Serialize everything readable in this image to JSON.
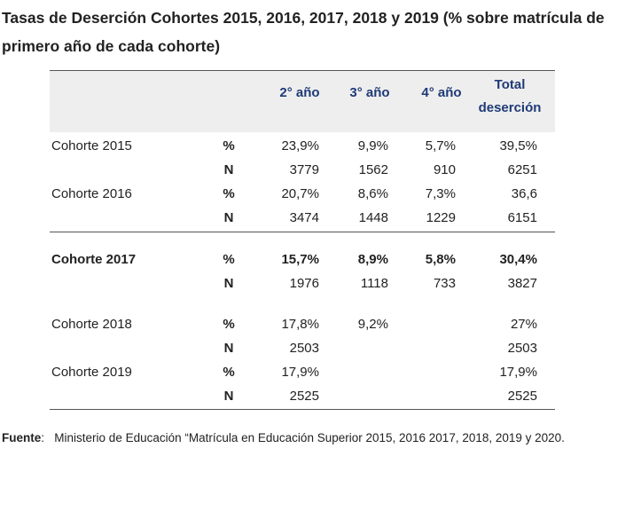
{
  "title": {
    "main": "Tasas de Deserción Cohortes 2015, 2016, 2017, 2018 y 2019",
    "suffix": " (% sobre matrícula de primero año de cada cohorte)"
  },
  "table": {
    "headers": {
      "y2": "2° año",
      "y3": "3° año",
      "y4": "4° año",
      "total_line1": "Total",
      "total_line2": "deserción"
    },
    "rows": [
      {
        "label": "Cohorte 2015",
        "type": "%",
        "y2": "23,9%",
        "y3": "9,9%",
        "y4": "5,7%",
        "total": "39,5%"
      },
      {
        "label": "",
        "type": "N",
        "y2": "3779",
        "y3": "1562",
        "y4": "910",
        "total": "6251"
      },
      {
        "label": "Cohorte 2016",
        "type": "%",
        "y2": "20,7%",
        "y3": "8,6%",
        "y4": "7,3%",
        "total": "36,6"
      },
      {
        "label": "",
        "type": "N",
        "y2": "3474",
        "y3": "1448",
        "y4": "1229",
        "total": "6151"
      },
      {
        "label": "Cohorte 2017",
        "type": "%",
        "y2": "15,7%",
        "y3": "8,9%",
        "y4": "5,8%",
        "total": "30,4%"
      },
      {
        "label": "",
        "type": "N",
        "y2": "1976",
        "y3": "1118",
        "y4": "733",
        "total": "3827"
      },
      {
        "label": "Cohorte 2018",
        "type": "%",
        "y2": "17,8%",
        "y3": "9,2%",
        "y4": "",
        "total": "27%"
      },
      {
        "label": "",
        "type": "N",
        "y2": "2503",
        "y3": "",
        "y4": "",
        "total": "2503"
      },
      {
        "label": "Cohorte 2019",
        "type": "%",
        "y2": "17,9%",
        "y3": "",
        "y4": "",
        "total": "17,9%"
      },
      {
        "label": "",
        "type": "N",
        "y2": "2525",
        "y3": "",
        "y4": "",
        "total": "2525"
      }
    ]
  },
  "source": {
    "label": "Fuente",
    "colon": ":",
    "text": "Ministerio de Educación “Matrícula en Educación Superior 2015, 2016 2017, 2018, 2019 y 2020."
  },
  "colors": {
    "header_text": "#1f3a77",
    "header_band": "#eeeeee",
    "rule": "#555555"
  }
}
